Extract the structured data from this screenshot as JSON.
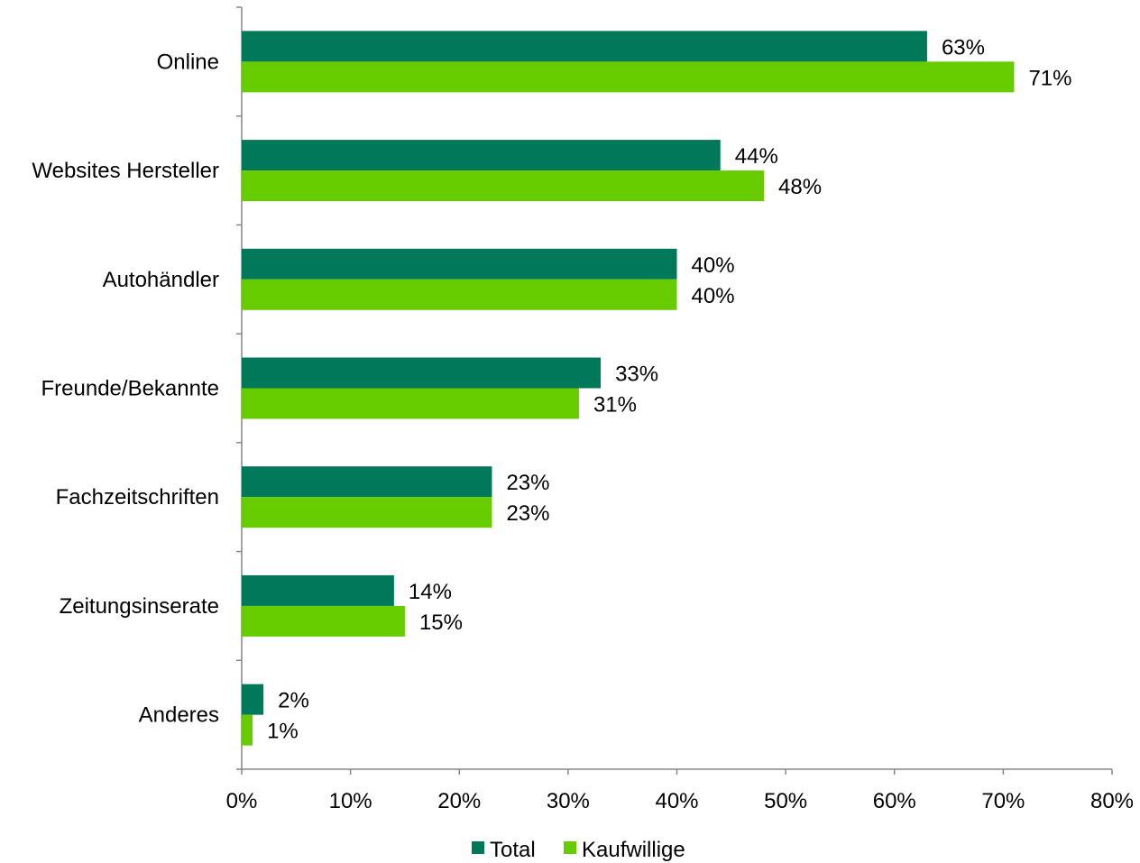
{
  "chart_data": {
    "type": "bar",
    "orientation": "horizontal",
    "title": "",
    "xlabel": "",
    "ylabel": "",
    "categories": [
      "Online",
      "Websites Hersteller",
      "Autohändler",
      "Freunde/Bekannte",
      "Fachzeitschriften",
      "Zeitungsinserate",
      "Anderes"
    ],
    "series": [
      {
        "name": "Total",
        "color": "#00785A",
        "values": [
          63,
          44,
          40,
          33,
          23,
          14,
          2
        ],
        "labels": [
          "63%",
          "44%",
          "40%",
          "33%",
          "23%",
          "14%",
          "2%"
        ]
      },
      {
        "name": "Kaufwillige",
        "color": "#66CC00",
        "values": [
          71,
          48,
          40,
          31,
          23,
          15,
          1
        ],
        "labels": [
          "71%",
          "48%",
          "40%",
          "31%",
          "23%",
          "15%",
          "1%"
        ]
      }
    ],
    "xlim": [
      0,
      80
    ],
    "x_ticks": [
      0,
      10,
      20,
      30,
      40,
      50,
      60,
      70,
      80
    ],
    "x_tick_labels": [
      "0%",
      "10%",
      "20%",
      "30%",
      "40%",
      "50%",
      "60%",
      "70%",
      "80%"
    ],
    "grid": false,
    "legend_position": "bottom"
  }
}
